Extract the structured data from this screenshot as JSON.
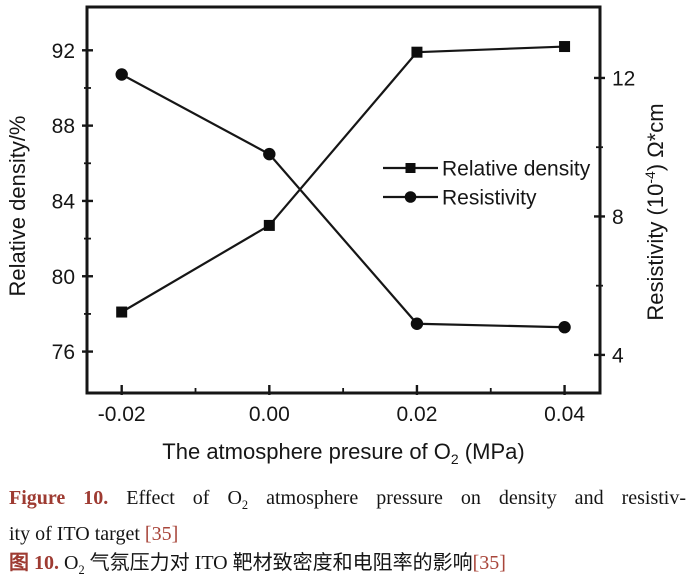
{
  "figure": {
    "accent_red": "#9e3b32",
    "ref_red": "#a8453a",
    "ink": "#161616"
  },
  "chart_data": {
    "type": "line",
    "x": [
      -0.02,
      0.0,
      0.02,
      0.04
    ],
    "x_ticks": {
      "values": [
        -0.02,
        0.0,
        0.02,
        0.04
      ],
      "labels": [
        "-0.02",
        "0.00",
        "0.02",
        "0.04"
      ],
      "minor": [
        -0.01,
        0.01,
        0.03
      ]
    },
    "xlabel_parts": {
      "pre": "The atmosphere presure of O",
      "sub": "2",
      "post": " (MPa)"
    },
    "xlim": [
      -0.0247,
      0.0448
    ],
    "series": [
      {
        "name": "Relative density",
        "marker": "square",
        "axis": "left",
        "values": [
          78.1,
          82.7,
          91.9,
          92.2
        ]
      },
      {
        "name": "Resistivity",
        "marker": "circle",
        "axis": "right",
        "values": [
          12.1,
          9.8,
          4.9,
          4.8
        ]
      }
    ],
    "left_axis": {
      "label": "Relative density/%",
      "ticks": [
        76,
        80,
        84,
        88,
        92
      ],
      "minor": [
        78,
        82,
        86,
        90
      ],
      "range": [
        73.8,
        94.3
      ]
    },
    "right_axis": {
      "label_parts": {
        "pre": "Resistivity (10",
        "sup": "-4",
        "post": ") Ω*cm"
      },
      "ticks": [
        4,
        8,
        12
      ],
      "minor": [
        6,
        10
      ],
      "range": [
        2.9,
        14.05
      ]
    },
    "legend": {
      "position": "center-right",
      "entries": [
        "Relative density",
        "Resistivity"
      ]
    },
    "grid": false,
    "line_color": "#161616",
    "marker_color": "#0d0d0d"
  },
  "caption": {
    "en_label": "Figure 10.",
    "en_line1_pre": " Effect of O",
    "en_sub": "2",
    "en_line1_post": " atmosphere pressure on density and resistiv-",
    "en_line2": "ity of ITO target ",
    "en_ref": "[35]",
    "zh_label": "图 10.",
    "zh_pre": " O",
    "zh_sub": "2",
    "zh_post": " 气氛压力对 ITO 靶材致密度和电阻率的影响",
    "zh_ref": "[35]"
  }
}
